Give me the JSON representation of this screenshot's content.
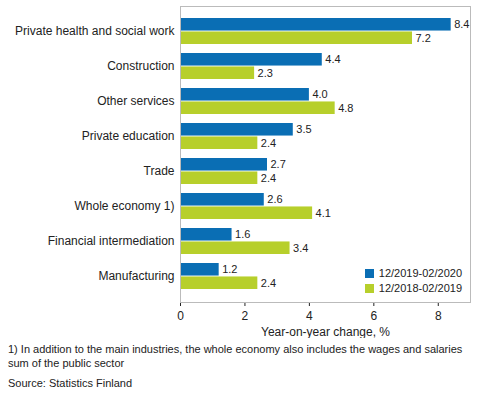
{
  "chart_data": {
    "type": "bar",
    "orientation": "horizontal",
    "categories": [
      "Private health and social work",
      "Construction",
      "Other services",
      "Private education",
      "Trade",
      "Whole economy 1)",
      "Financial intermediation",
      "Manufacturing"
    ],
    "series": [
      {
        "name": "12/2019-02/2020",
        "color": "#0a6eb4",
        "values": [
          8.4,
          4.4,
          4.0,
          3.5,
          2.7,
          2.6,
          1.6,
          1.2
        ],
        "value_labels": [
          "8.4",
          "4.4",
          "4.0",
          "3.5",
          "2.7",
          "2.6",
          "1.6",
          "1.2"
        ]
      },
      {
        "name": "12/2018-02/2019",
        "color": "#b7cf2b",
        "values": [
          7.2,
          2.3,
          4.8,
          2.4,
          2.4,
          4.1,
          3.4,
          2.4
        ],
        "value_labels": [
          "7.2",
          "2.3",
          "4.8",
          "2.4",
          "2.4",
          "4.1",
          "3.4",
          "2.4"
        ]
      }
    ],
    "x_label": "Year-on-year change, %",
    "xlim": [
      0,
      9
    ],
    "xticks": [
      0,
      2,
      4,
      6,
      8
    ],
    "grid": false,
    "data_labels": true,
    "legend": "bottom right",
    "footnote": "1) In addition to the main industries, the whole economy also includes the wages and salaries sum of the public sector",
    "source": "Source: Statistics Finland"
  }
}
